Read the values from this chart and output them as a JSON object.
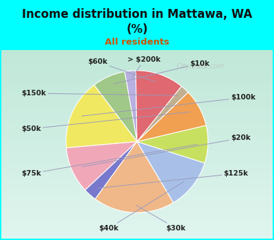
{
  "title": "Income distribution in Mattawa, WA\n(%)",
  "subtitle": "All residents",
  "title_color": "#111111",
  "subtitle_color": "#cc5500",
  "bg_top": "#00ffff",
  "bg_chart_top": "#e0f5ef",
  "bg_chart_bottom": "#c8edd8",
  "labels": [
    "> $200k",
    "$10k",
    "$100k",
    "$20k",
    "$125k",
    "$30k",
    "$40k",
    "$75k",
    "$50k",
    "$150k",
    "$60k"
  ],
  "values": [
    2.5,
    7.5,
    16.0,
    10.5,
    3.0,
    18.5,
    11.5,
    8.5,
    8.5,
    2.0,
    11.0
  ],
  "colors": [
    "#b8b0e0",
    "#a0c888",
    "#f0e860",
    "#f0a8b8",
    "#7878cc",
    "#f0b888",
    "#a8c0e8",
    "#c8e060",
    "#f0a050",
    "#c0b090",
    "#e06870"
  ]
}
